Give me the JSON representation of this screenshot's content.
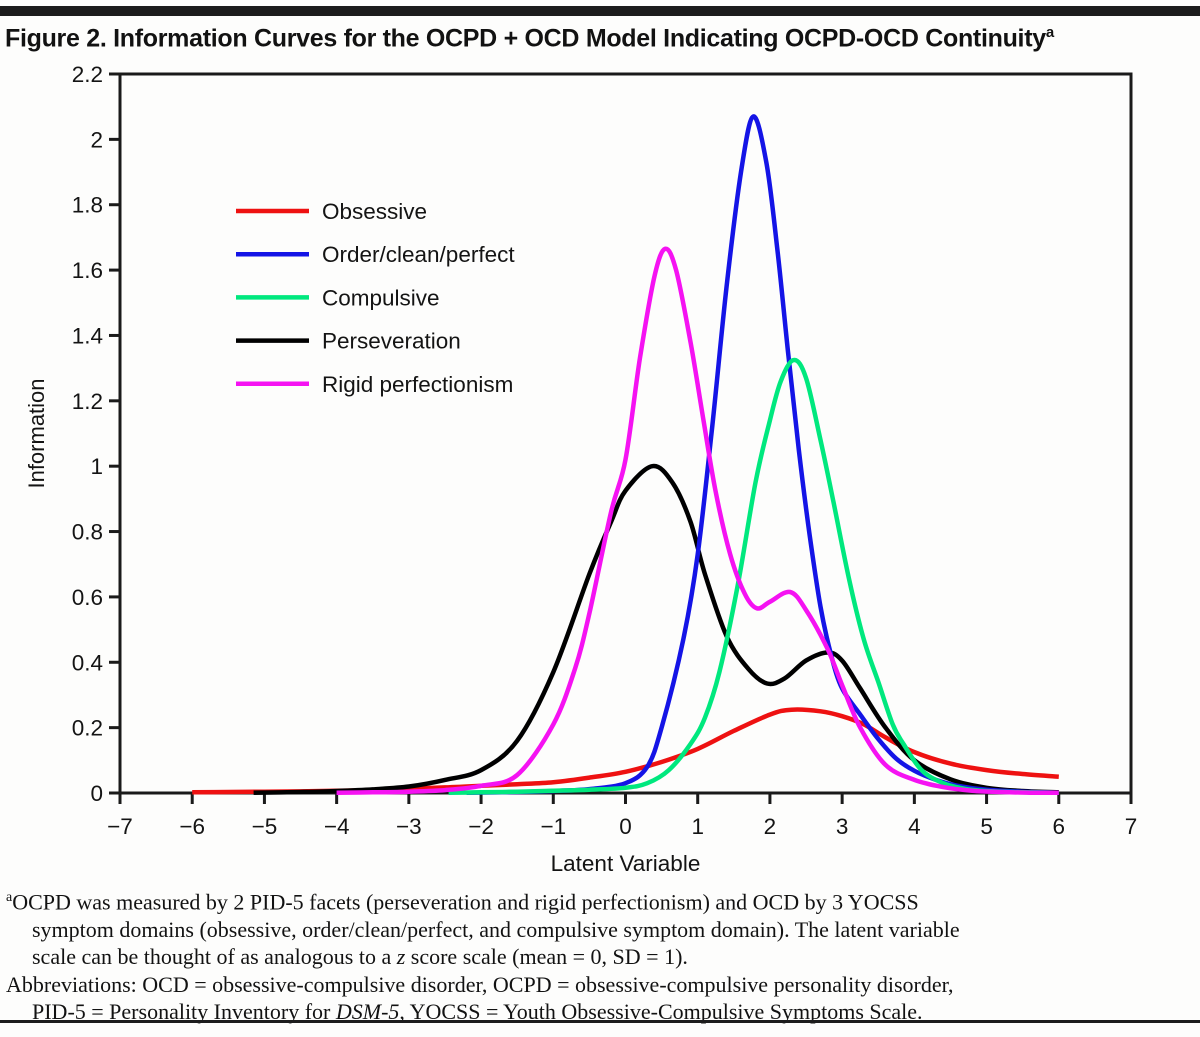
{
  "page": {
    "title": "Figure 2. Information Curves for the OCPD + OCD Model Indicating OCPD-OCD Continuity",
    "title_superscript": "a"
  },
  "colors": {
    "rule": "#1c1c1c",
    "axis": "#1a1a1a",
    "text": "#141414"
  },
  "chart_data": {
    "type": "line",
    "title": "",
    "xlabel": "Latent Variable",
    "ylabel": "Information",
    "xlim": [
      -7,
      7
    ],
    "ylim": [
      0,
      2.2
    ],
    "grid": false,
    "legend_position": "inside-upper-left",
    "x_ticks": [
      -7,
      -6,
      -5,
      -4,
      -3,
      -2,
      -1,
      0,
      1,
      2,
      3,
      4,
      5,
      6,
      7
    ],
    "x_tick_labels": [
      "−7",
      "−6",
      "−5",
      "−4",
      "−3",
      "−2",
      "−1",
      "0",
      "1",
      "2",
      "3",
      "4",
      "5",
      "6",
      "7"
    ],
    "y_ticks": [
      0,
      0.2,
      0.4,
      0.6,
      0.8,
      1,
      1.2,
      1.4,
      1.6,
      1.8,
      2,
      2.2
    ],
    "y_tick_labels": [
      "0",
      "0.2",
      "0.4",
      "0.6",
      "0.8",
      "1",
      "1.2",
      "1.4",
      "1.6",
      "1.8",
      "2",
      "2.2"
    ],
    "draw_order": [
      0,
      3,
      1,
      2,
      4
    ],
    "series": [
      {
        "name": "Obsessive",
        "color": "#ee1111",
        "points": [
          [
            -6,
            0.002
          ],
          [
            -5.5,
            0.003
          ],
          [
            -5,
            0.004
          ],
          [
            -4.5,
            0.005
          ],
          [
            -4,
            0.007
          ],
          [
            -3.5,
            0.009
          ],
          [
            -3,
            0.013
          ],
          [
            -2.5,
            0.017
          ],
          [
            -2,
            0.022
          ],
          [
            -1.5,
            0.027
          ],
          [
            -1,
            0.033
          ],
          [
            -0.5,
            0.047
          ],
          [
            0,
            0.065
          ],
          [
            0.5,
            0.095
          ],
          [
            1,
            0.135
          ],
          [
            1.5,
            0.19
          ],
          [
            2,
            0.24
          ],
          [
            2.3,
            0.255
          ],
          [
            2.7,
            0.25
          ],
          [
            3,
            0.235
          ],
          [
            3.3,
            0.21
          ],
          [
            3.6,
            0.17
          ],
          [
            4,
            0.125
          ],
          [
            4.5,
            0.09
          ],
          [
            5,
            0.07
          ],
          [
            5.5,
            0.058
          ],
          [
            6,
            0.05
          ]
        ]
      },
      {
        "name": "Order/clean/perfect",
        "color": "#1414e6",
        "points": [
          [
            -2.2,
            0.001
          ],
          [
            -1.5,
            0.003
          ],
          [
            -1,
            0.006
          ],
          [
            -0.5,
            0.012
          ],
          [
            0,
            0.03
          ],
          [
            0.3,
            0.08
          ],
          [
            0.5,
            0.2
          ],
          [
            0.8,
            0.47
          ],
          [
            1,
            0.73
          ],
          [
            1.2,
            1.12
          ],
          [
            1.4,
            1.55
          ],
          [
            1.6,
            1.9
          ],
          [
            1.77,
            2.07
          ],
          [
            1.95,
            1.93
          ],
          [
            2.1,
            1.67
          ],
          [
            2.25,
            1.35
          ],
          [
            2.4,
            1.05
          ],
          [
            2.55,
            0.79
          ],
          [
            2.7,
            0.57
          ],
          [
            2.85,
            0.42
          ],
          [
            3,
            0.32
          ],
          [
            3.25,
            0.24
          ],
          [
            3.5,
            0.165
          ],
          [
            3.75,
            0.105
          ],
          [
            4,
            0.068
          ],
          [
            4.3,
            0.04
          ],
          [
            4.6,
            0.022
          ],
          [
            5,
            0.01
          ],
          [
            5.5,
            0.004
          ],
          [
            6,
            0.001
          ]
        ]
      },
      {
        "name": "Compulsive",
        "color": "#00e87e",
        "points": [
          [
            -2.45,
            0.001
          ],
          [
            -2,
            0.002
          ],
          [
            -1.5,
            0.004
          ],
          [
            -1,
            0.007
          ],
          [
            -0.5,
            0.01
          ],
          [
            0,
            0.016
          ],
          [
            0.3,
            0.03
          ],
          [
            0.6,
            0.07
          ],
          [
            0.9,
            0.15
          ],
          [
            1.1,
            0.23
          ],
          [
            1.3,
            0.37
          ],
          [
            1.55,
            0.63
          ],
          [
            1.8,
            0.95
          ],
          [
            2,
            1.14
          ],
          [
            2.15,
            1.26
          ],
          [
            2.33,
            1.325
          ],
          [
            2.5,
            1.27
          ],
          [
            2.7,
            1.08
          ],
          [
            2.88,
            0.89
          ],
          [
            3.1,
            0.65
          ],
          [
            3.3,
            0.47
          ],
          [
            3.5,
            0.34
          ],
          [
            3.7,
            0.21
          ],
          [
            3.85,
            0.15
          ],
          [
            4.1,
            0.07
          ],
          [
            4.4,
            0.03
          ],
          [
            4.7,
            0.013
          ],
          [
            5,
            0.006
          ],
          [
            5.5,
            0.002
          ],
          [
            6,
            0.001
          ]
        ]
      },
      {
        "name": "Perseveration",
        "color": "#000000",
        "points": [
          [
            -5.15,
            0.001
          ],
          [
            -4.5,
            0.003
          ],
          [
            -4,
            0.006
          ],
          [
            -3.5,
            0.011
          ],
          [
            -3,
            0.02
          ],
          [
            -2.5,
            0.04
          ],
          [
            -2,
            0.07
          ],
          [
            -1.5,
            0.16
          ],
          [
            -1,
            0.37
          ],
          [
            -0.5,
            0.67
          ],
          [
            -0.2,
            0.83
          ],
          [
            0,
            0.925
          ],
          [
            0.37,
            1.0
          ],
          [
            0.65,
            0.95
          ],
          [
            0.9,
            0.83
          ],
          [
            1.1,
            0.67
          ],
          [
            1.4,
            0.48
          ],
          [
            1.7,
            0.38
          ],
          [
            1.96,
            0.335
          ],
          [
            2.2,
            0.35
          ],
          [
            2.5,
            0.405
          ],
          [
            2.8,
            0.43
          ],
          [
            3,
            0.405
          ],
          [
            3.25,
            0.32
          ],
          [
            3.6,
            0.2
          ],
          [
            4,
            0.1
          ],
          [
            4.5,
            0.042
          ],
          [
            5,
            0.016
          ],
          [
            5.5,
            0.006
          ],
          [
            6,
            0.002
          ]
        ]
      },
      {
        "name": "Rigid perfectionism",
        "color": "#f512f2",
        "points": [
          [
            -4,
            0.001
          ],
          [
            -3.5,
            0.002
          ],
          [
            -3,
            0.004
          ],
          [
            -2.5,
            0.009
          ],
          [
            -2,
            0.022
          ],
          [
            -1.5,
            0.055
          ],
          [
            -1,
            0.21
          ],
          [
            -0.7,
            0.38
          ],
          [
            -0.5,
            0.55
          ],
          [
            -0.2,
            0.86
          ],
          [
            0,
            1.02
          ],
          [
            0.2,
            1.33
          ],
          [
            0.4,
            1.58
          ],
          [
            0.55,
            1.665
          ],
          [
            0.7,
            1.6
          ],
          [
            0.9,
            1.38
          ],
          [
            1.08,
            1.14
          ],
          [
            1.25,
            0.92
          ],
          [
            1.45,
            0.73
          ],
          [
            1.65,
            0.61
          ],
          [
            1.82,
            0.565
          ],
          [
            2,
            0.585
          ],
          [
            2.28,
            0.615
          ],
          [
            2.5,
            0.56
          ],
          [
            2.8,
            0.44
          ],
          [
            3,
            0.33
          ],
          [
            3.25,
            0.2
          ],
          [
            3.6,
            0.086
          ],
          [
            4,
            0.04
          ],
          [
            4.4,
            0.018
          ],
          [
            4.8,
            0.007
          ],
          [
            5.2,
            0.003
          ],
          [
            5.6,
            0.001
          ],
          [
            6,
            0.001
          ]
        ]
      }
    ]
  },
  "footnotes": {
    "lines": [
      {
        "indent": false,
        "segments": [
          {
            "sup": "a"
          },
          {
            "text": "OCPD was measured by 2 PID-5 facets (perseveration and rigid perfectionism) and OCD by 3 YOCSS"
          }
        ]
      },
      {
        "indent": true,
        "segments": [
          {
            "text": "symptom domains (obsessive, order/clean/perfect, and compulsive symptom domain). The latent variable"
          }
        ]
      },
      {
        "indent": true,
        "segments": [
          {
            "text": "scale can be thought of as analogous to a "
          },
          {
            "text": "z",
            "italic": true
          },
          {
            "text": " score scale (mean = 0, SD = 1)."
          }
        ]
      },
      {
        "indent": false,
        "segments": [
          {
            "text": "Abbreviations: OCD = obsessive-compulsive disorder, OCPD = obsessive-compulsive personality disorder,"
          }
        ]
      },
      {
        "indent": true,
        "segments": [
          {
            "text": "PID-5 = Personality Inventory for "
          },
          {
            "text": "DSM-5",
            "italic": true
          },
          {
            "text": ", YOCSS = Youth Obsessive-Compulsive Symptoms Scale."
          }
        ]
      }
    ]
  }
}
